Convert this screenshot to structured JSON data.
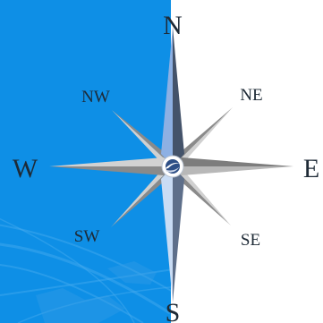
{
  "compass": {
    "cardinals": {
      "north": "N",
      "east": "E",
      "south": "S",
      "west": "W"
    },
    "intercardinals": {
      "northeast": "NE",
      "southeast": "SE",
      "southwest": "SW",
      "northwest": "NW"
    },
    "center_emblem_icon": "globe-swoosh-icon"
  },
  "colors": {
    "background_left": "#0e8fe6",
    "background_right": "#ffffff",
    "needle_light": "#8db0e3",
    "needle_pale": "#c9dcf4",
    "needle_dark": "#44536a",
    "needle_mid": "#5e6f8a",
    "horizontal_light": "#c8c8c8",
    "horizontal_dark": "#7d7d7d",
    "diagonal_light": "#d0d0d0",
    "diagonal_dark": "#8a8a8a",
    "emblem_fill": "#2e4f86",
    "label": "#1e2a36"
  }
}
